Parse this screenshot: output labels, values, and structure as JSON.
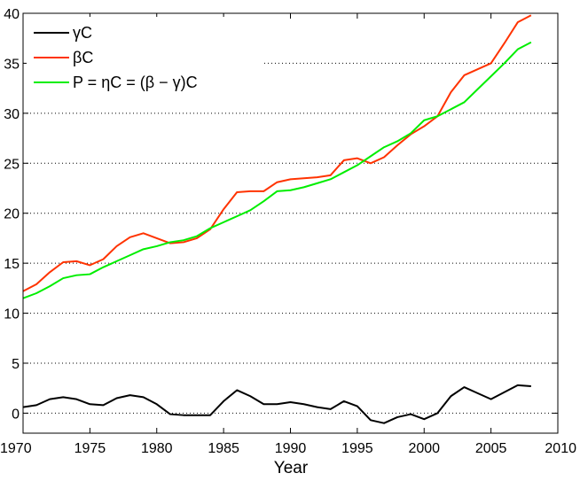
{
  "chart_data": {
    "type": "line",
    "title": "",
    "xlabel": "Year",
    "ylabel": "",
    "xlim": [
      1970,
      2010
    ],
    "ylim": [
      -2,
      40
    ],
    "grid": "horizontal-dotted",
    "legend_position": "top-left",
    "x_ticks": [
      1970,
      1975,
      1980,
      1985,
      1990,
      1995,
      2000,
      2005,
      2010
    ],
    "y_ticks": [
      0,
      5,
      10,
      15,
      20,
      25,
      30,
      35,
      40
    ],
    "x": [
      1970,
      1971,
      1972,
      1973,
      1974,
      1975,
      1976,
      1977,
      1978,
      1979,
      1980,
      1981,
      1982,
      1983,
      1984,
      1985,
      1986,
      1987,
      1988,
      1989,
      1990,
      1991,
      1992,
      1993,
      1994,
      1995,
      1996,
      1997,
      1998,
      1999,
      2000,
      2001,
      2002,
      2003,
      2004,
      2005,
      2006,
      2007,
      2008
    ],
    "series": [
      {
        "name": "γC",
        "color": "#000000",
        "values": [
          0.6,
          0.8,
          1.4,
          1.6,
          1.4,
          0.9,
          0.8,
          1.5,
          1.8,
          1.6,
          0.9,
          -0.1,
          -0.2,
          -0.2,
          -0.2,
          1.2,
          2.3,
          1.7,
          0.9,
          0.9,
          1.1,
          0.9,
          0.6,
          0.4,
          1.2,
          0.7,
          -0.7,
          -1.0,
          -0.4,
          -0.1,
          -0.6,
          0.0,
          1.7,
          2.6,
          2.0,
          1.4,
          2.1,
          2.8,
          2.7
        ]
      },
      {
        "name": "βC",
        "color": "#ff3300",
        "values": [
          12.2,
          12.9,
          14.1,
          15.1,
          15.2,
          14.8,
          15.4,
          16.7,
          17.6,
          18.0,
          17.5,
          17.0,
          17.1,
          17.5,
          18.4,
          20.4,
          22.1,
          22.2,
          22.2,
          23.1,
          23.4,
          23.5,
          23.6,
          23.8,
          25.3,
          25.5,
          25.0,
          25.6,
          26.8,
          27.9,
          28.7,
          29.7,
          32.1,
          33.8,
          34.4,
          35.0,
          37.0,
          39.1,
          39.8
        ]
      },
      {
        "name": "P = ηC = (β − γ)C",
        "color": "#00ee00",
        "values": [
          11.5,
          12.0,
          12.7,
          13.5,
          13.8,
          13.9,
          14.6,
          15.2,
          15.8,
          16.4,
          16.7,
          17.1,
          17.3,
          17.7,
          18.5,
          19.1,
          19.7,
          20.3,
          21.2,
          22.2,
          22.3,
          22.6,
          23.0,
          23.4,
          24.1,
          24.8,
          25.7,
          26.6,
          27.2,
          28.0,
          29.3,
          29.7,
          30.4,
          31.1,
          32.4,
          33.7,
          35.0,
          36.4,
          37.1
        ]
      }
    ]
  }
}
